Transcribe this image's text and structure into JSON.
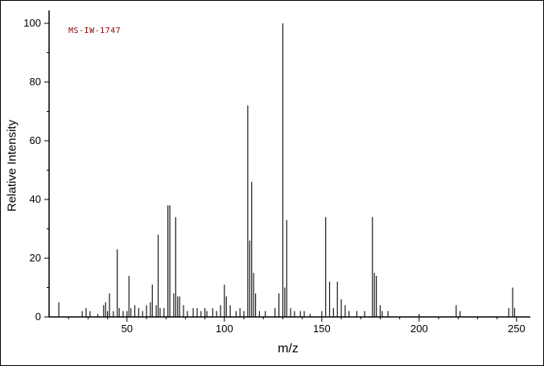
{
  "figure": {
    "annotation": "MS-IW-1747"
  },
  "axes": {
    "x_label": "m/z",
    "y_label": "Relative Intensity",
    "x_ticks": [
      50,
      100,
      150,
      200,
      250
    ],
    "y_ticks": [
      0,
      20,
      40,
      60,
      80,
      100
    ]
  },
  "colors": {
    "axis": "#000000",
    "peak": "#1a1a1a",
    "annotation": "#8b0000",
    "background": "#ffffff"
  },
  "chart_data": {
    "type": "bar",
    "title": "",
    "annotation": "MS-IW-1747",
    "xlabel": "m/z",
    "ylabel": "Relative Intensity",
    "xlim": [
      10,
      255
    ],
    "ylim": [
      0,
      100
    ],
    "grid": false,
    "legend": false,
    "peaks": [
      [
        15,
        5
      ],
      [
        27,
        2
      ],
      [
        29,
        3
      ],
      [
        31,
        2
      ],
      [
        35,
        1
      ],
      [
        38,
        4
      ],
      [
        39,
        5
      ],
      [
        40,
        2
      ],
      [
        41,
        8
      ],
      [
        43,
        2
      ],
      [
        45,
        23
      ],
      [
        46,
        3
      ],
      [
        48,
        2
      ],
      [
        50,
        2
      ],
      [
        51,
        14
      ],
      [
        52,
        3
      ],
      [
        54,
        4
      ],
      [
        56,
        3
      ],
      [
        58,
        2
      ],
      [
        60,
        4
      ],
      [
        62,
        5
      ],
      [
        63,
        11
      ],
      [
        65,
        4
      ],
      [
        66,
        28
      ],
      [
        67,
        3
      ],
      [
        69,
        3
      ],
      [
        71,
        38
      ],
      [
        72,
        38
      ],
      [
        74,
        8
      ],
      [
        75,
        34
      ],
      [
        76,
        7
      ],
      [
        77,
        7
      ],
      [
        79,
        4
      ],
      [
        81,
        2
      ],
      [
        84,
        3
      ],
      [
        86,
        3
      ],
      [
        88,
        2
      ],
      [
        90,
        3
      ],
      [
        91,
        2
      ],
      [
        94,
        3
      ],
      [
        96,
        2
      ],
      [
        98,
        4
      ],
      [
        100,
        11
      ],
      [
        101,
        7
      ],
      [
        103,
        4
      ],
      [
        106,
        2
      ],
      [
        108,
        3
      ],
      [
        110,
        2
      ],
      [
        112,
        72
      ],
      [
        113,
        26
      ],
      [
        114,
        46
      ],
      [
        115,
        15
      ],
      [
        116,
        8
      ],
      [
        118,
        2
      ],
      [
        121,
        2
      ],
      [
        126,
        3
      ],
      [
        128,
        8
      ],
      [
        130,
        100
      ],
      [
        131,
        10
      ],
      [
        132,
        33
      ],
      [
        134,
        3
      ],
      [
        136,
        2
      ],
      [
        139,
        2
      ],
      [
        141,
        2
      ],
      [
        144,
        1
      ],
      [
        150,
        2
      ],
      [
        152,
        34
      ],
      [
        154,
        12
      ],
      [
        156,
        3
      ],
      [
        158,
        12
      ],
      [
        160,
        6
      ],
      [
        162,
        4
      ],
      [
        164,
        2
      ],
      [
        168,
        2
      ],
      [
        172,
        2
      ],
      [
        176,
        34
      ],
      [
        177,
        15
      ],
      [
        178,
        14
      ],
      [
        180,
        4
      ],
      [
        181,
        2
      ],
      [
        184,
        2
      ],
      [
        200,
        1
      ],
      [
        219,
        4
      ],
      [
        221,
        2
      ],
      [
        246,
        3
      ],
      [
        248,
        10
      ],
      [
        249,
        3
      ]
    ]
  }
}
